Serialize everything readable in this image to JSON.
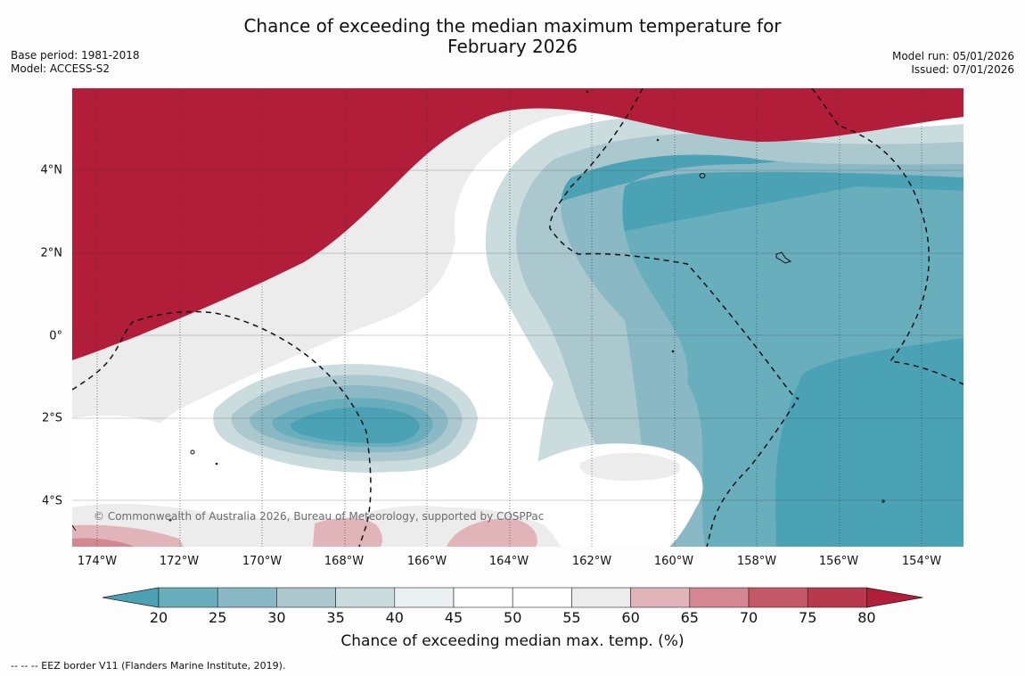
{
  "title": {
    "line1": "Chance of exceeding the median maximum temperature for",
    "line2": "February 2026"
  },
  "meta": {
    "base_period": "Base period: 1981-2018",
    "model": "Model: ACCESS-S2",
    "model_run": "Model run: 05/01/2026",
    "issued": "Issued: 07/01/2026"
  },
  "map": {
    "copyright": "© Commonwealth of Australia 2026, Bureau of Meteorology, supported by COSPPac",
    "lon_labels": [
      "174°W",
      "172°W",
      "170°W",
      "168°W",
      "166°W",
      "164°W",
      "162°W",
      "160°W",
      "158°W",
      "156°W",
      "154°W"
    ],
    "lat_labels": [
      "4°N",
      "2°N",
      "0°",
      "2°S",
      "4°S"
    ]
  },
  "colorbar": {
    "ticks": [
      "20",
      "25",
      "30",
      "35",
      "40",
      "45",
      "50",
      "55",
      "60",
      "65",
      "70",
      "75",
      "80"
    ],
    "colors": [
      "#4aa2b4",
      "#68aebd",
      "#8ab9c5",
      "#abc8ce",
      "#cbdcde",
      "#eaeff1",
      "#ffffff",
      "#ffffff",
      "#edeced",
      "#e1b4ba",
      "#d48790",
      "#c55866",
      "#b8394c",
      "#b21e3a"
    ],
    "label": "Chance of exceeding median max. temp. (%)"
  },
  "footnote": "-- -- -- EEZ border V11 (Flanders Marine Institute, 2019)."
}
